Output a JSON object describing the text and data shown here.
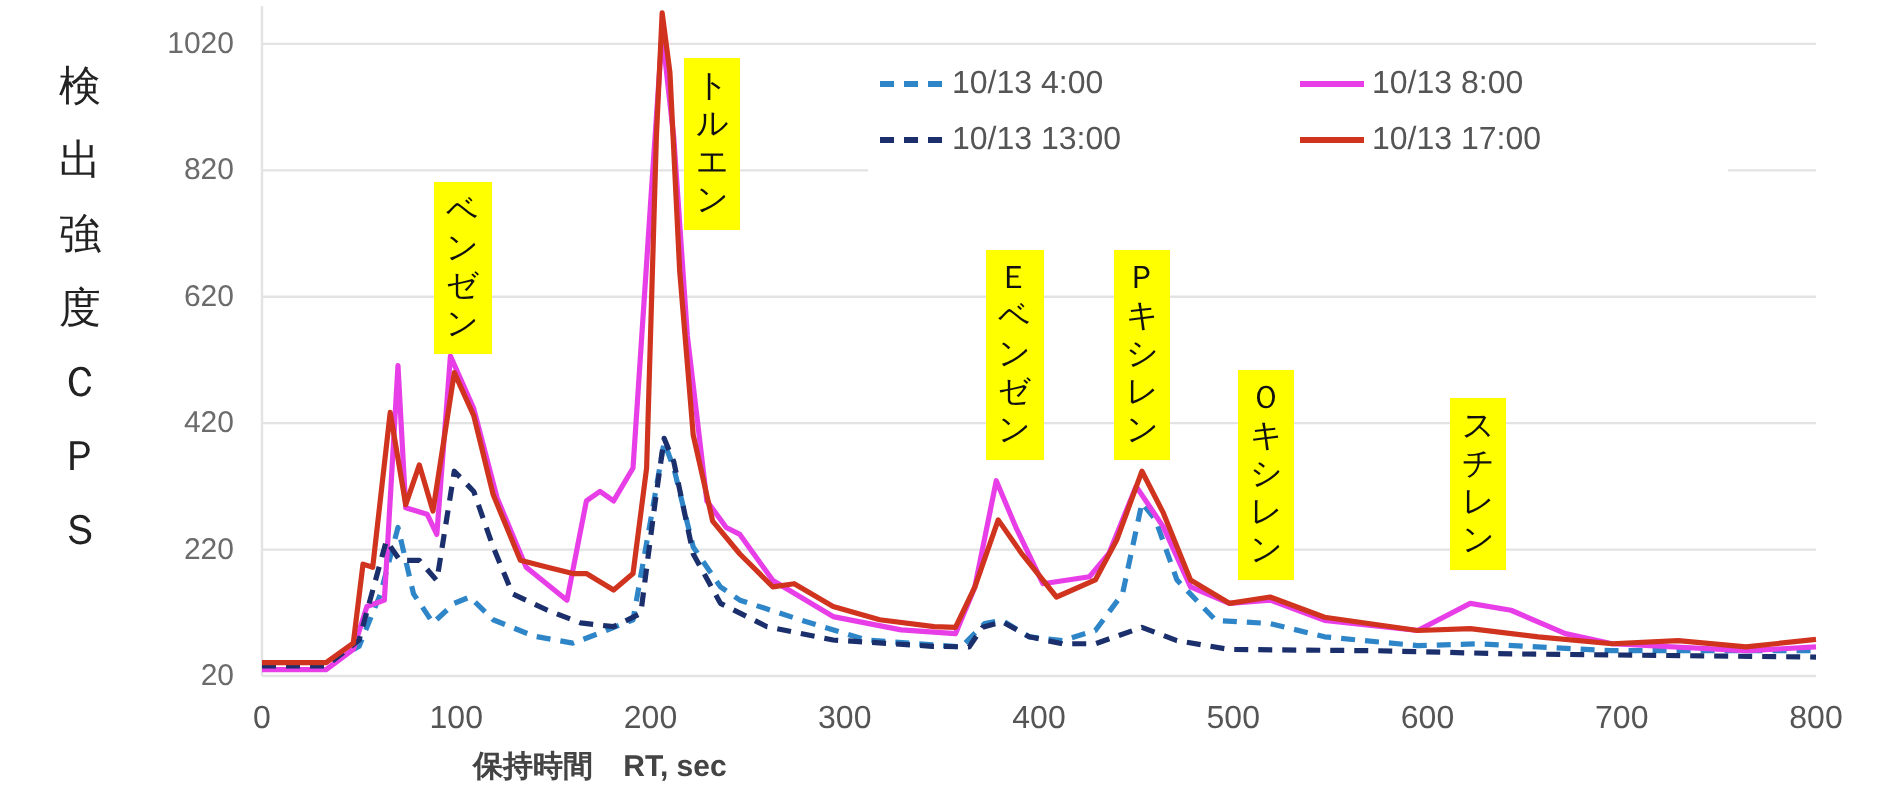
{
  "chart_data": {
    "type": "line",
    "xlabel": "保持時間　RT, sec",
    "ylabel": "検出強度ＣＰＳ",
    "xlim": [
      0,
      800
    ],
    "xticks": [
      0,
      100,
      200,
      300,
      400,
      500,
      600,
      700,
      800
    ],
    "ylim": [
      20,
      1080
    ],
    "yticks": [
      20,
      220,
      420,
      620,
      820,
      1020
    ],
    "grid": "y",
    "legend": "top right",
    "series": [
      {
        "name": "10/13 4:00",
        "color": "#2e86c8",
        "line_style": "dashed",
        "x": [
          0,
          33,
          50,
          61,
          70,
          78,
          88,
          99,
          107,
          119,
          140,
          160,
          174,
          191,
          200,
          207,
          212,
          222,
          236,
          246,
          277,
          311,
          356,
          360,
          372,
          381,
          395,
          412,
          429,
          443,
          453,
          460,
          471,
          491,
          519,
          547,
          595,
          626,
          695,
          800
        ],
        "values": [
          36,
          36,
          67,
          150,
          255,
          150,
          104,
          135,
          145,
          109,
          83,
          72,
          88,
          109,
          265,
          390,
          349,
          224,
          161,
          140,
          109,
          77,
          67,
          66,
          103,
          108,
          82,
          76,
          92,
          150,
          294,
          267,
          172,
          108,
          103,
          82,
          68,
          71,
          60,
          60
        ]
      },
      {
        "name": "10/13 8:00",
        "color": "#e83ee8",
        "line_style": "solid",
        "x": [
          0,
          33,
          47,
          54,
          63,
          70,
          74,
          85,
          90,
          97,
          109,
          121,
          136,
          157,
          167,
          174,
          181,
          191,
          200,
          206,
          212,
          219,
          229,
          239,
          246,
          263,
          294,
          329,
          357,
          367,
          378,
          388,
          402,
          426,
          436,
          450,
          464,
          478,
          498,
          519,
          547,
          595,
          622,
          643,
          671,
          695,
          764,
          800
        ],
        "values": [
          30,
          30,
          62,
          130,
          140,
          511,
          286,
          276,
          244,
          526,
          443,
          302,
          192,
          140,
          297,
          312,
          297,
          349,
          766,
          1038,
          871,
          558,
          297,
          255,
          244,
          171,
          114,
          93,
          87,
          161,
          329,
          256,
          166,
          177,
          214,
          320,
          256,
          161,
          135,
          140,
          108,
          92,
          135,
          124,
          87,
          71,
          60,
          66
        ]
      },
      {
        "name": "10/13 13:00",
        "color": "#1a2f6b",
        "line_style": "dashed",
        "x": [
          0,
          33,
          50,
          64,
          71,
          81,
          90,
          99,
          109,
          119,
          129,
          147,
          164,
          181,
          195,
          202,
          207,
          212,
          222,
          236,
          260,
          294,
          345,
          364,
          371,
          381,
          395,
          412,
          429,
          453,
          471,
          498,
          574,
          643,
          800
        ],
        "values": [
          36,
          36,
          77,
          234,
          203,
          203,
          171,
          344,
          312,
          224,
          150,
          124,
          104,
          98,
          119,
          286,
          396,
          359,
          213,
          135,
          98,
          77,
          67,
          66,
          97,
          106,
          82,
          71,
          71,
          97,
          76,
          62,
          60,
          55,
          50
        ]
      },
      {
        "name": "10/13 17:00",
        "color": "#d0341f",
        "line_style": "solid",
        "x": [
          0,
          33,
          47,
          52,
          57,
          66,
          74,
          81,
          88,
          99,
          109,
          119,
          133,
          147,
          160,
          167,
          181,
          191,
          198,
          203,
          206,
          210,
          215,
          222,
          232,
          246,
          263,
          274,
          294,
          318,
          346,
          357,
          367,
          379,
          391,
          409,
          429,
          440,
          453,
          464,
          478,
          498,
          519,
          547,
          595,
          622,
          657,
          695,
          729,
          764,
          800
        ],
        "values": [
          41,
          41,
          72,
          197,
          192,
          437,
          291,
          354,
          281,
          500,
          432,
          307,
          203,
          192,
          182,
          182,
          156,
          182,
          349,
          871,
          1069,
          975,
          662,
          401,
          265,
          213,
          161,
          166,
          130,
          109,
          98,
          97,
          161,
          267,
          214,
          145,
          172,
          235,
          344,
          278,
          172,
          135,
          145,
          113,
          92,
          95,
          82,
          71,
          76,
          66,
          78
        ]
      }
    ],
    "annotations": [
      "ベンゼン",
      "トルエン",
      "Ｅベンゼン",
      "Ｐキシレン",
      "Ｏキシレン",
      "スチレン"
    ]
  }
}
